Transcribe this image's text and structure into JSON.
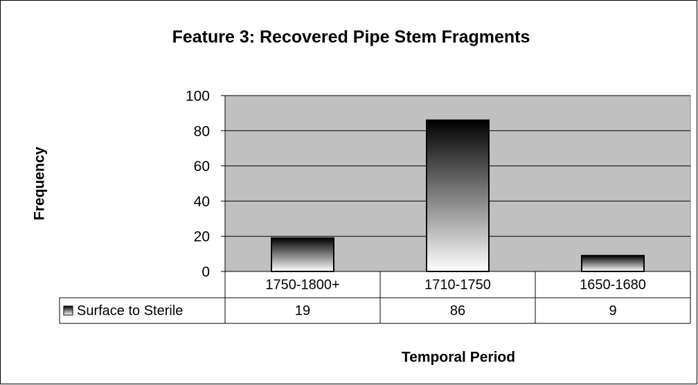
{
  "chart_data": {
    "type": "bar",
    "title": "Feature 3: Recovered Pipe Stem Fragments",
    "y_label": "Frequency",
    "x_label": "Temporal Period",
    "categories": [
      "1750-1800+",
      "1710-1750",
      "1650-1680"
    ],
    "series": [
      {
        "name": "Surface to Sterile",
        "color": "#000000",
        "values": [
          19,
          86,
          9
        ]
      }
    ],
    "ylim": [
      0,
      100
    ],
    "yticks": [
      0,
      20,
      40,
      60,
      80,
      100
    ],
    "grid": true,
    "data_table": true
  }
}
